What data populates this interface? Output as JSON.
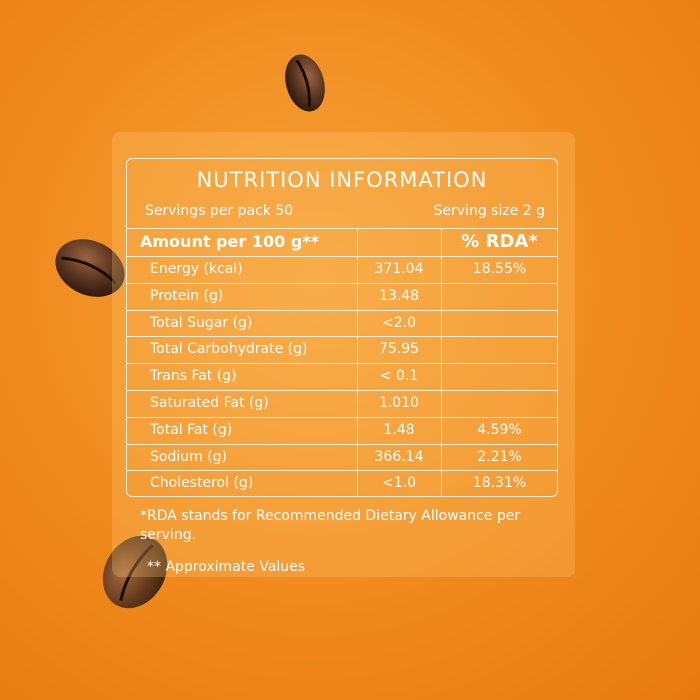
{
  "title": "NUTRITION INFORMATION",
  "servings_per_pack": "Servings per pack 50",
  "serving_size": "Serving size 2 g",
  "table": {
    "header": {
      "amount": "Amount per 100 g**",
      "rda": "% RDA*"
    },
    "rows": [
      {
        "nutrient": "Energy (kcal)",
        "value": "371.04",
        "rda": "18.55%"
      },
      {
        "nutrient": "Protein (g)",
        "value": "13.48"
      },
      {
        "nutrient": "Total Sugar (g)",
        "value": "<2.0"
      },
      {
        "nutrient": "Total Carbohydrate (g)",
        "value": "75.95"
      },
      {
        "nutrient": "Trans Fat (g)",
        "value": "< 0.1"
      },
      {
        "nutrient": "Saturated Fat (g)",
        "value": "1.010"
      },
      {
        "nutrient": "Total Fat (g)",
        "value": "1.48",
        "rda": "4.59%"
      },
      {
        "nutrient": "Sodium (g)",
        "value": "366.14",
        "rda": "2.21%"
      },
      {
        "nutrient": "Cholesterol (g)",
        "value": "<1.0",
        "rda": "18.31%"
      }
    ]
  },
  "footnotes": [
    "*RDA stands for Recommended Dietary Allowance per serving.",
    "** Approximate Values"
  ]
}
